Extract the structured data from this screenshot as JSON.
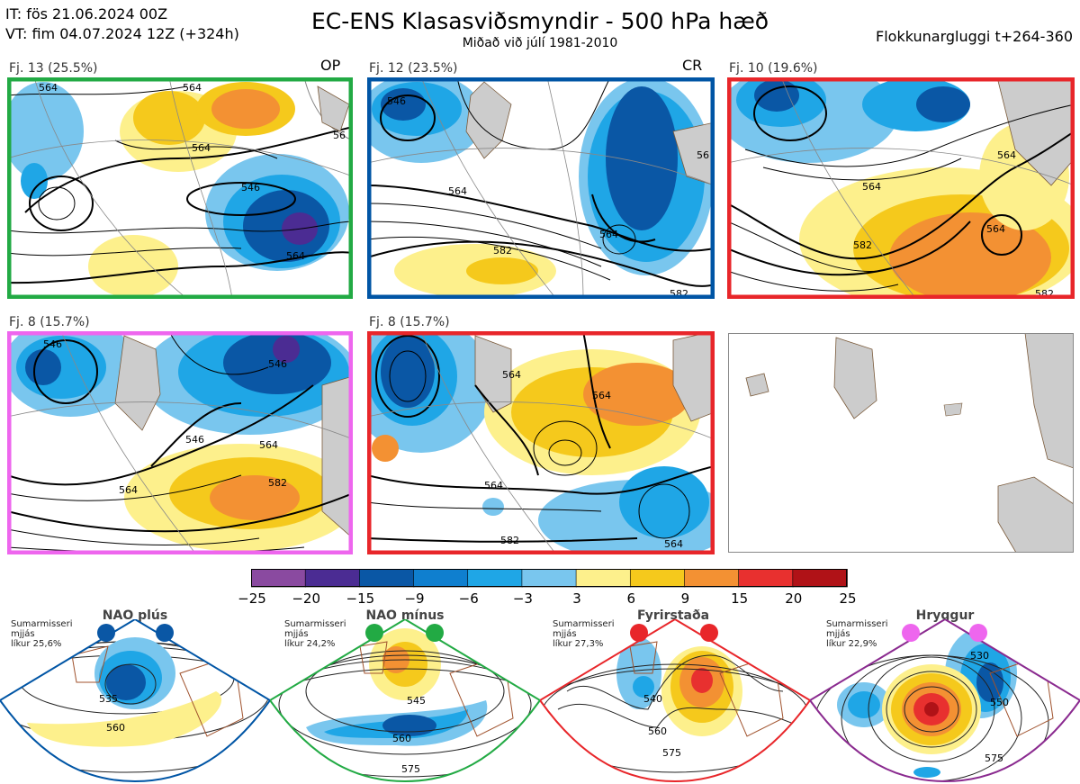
{
  "header": {
    "issue_time": "IT: fös 21.06.2024 00Z",
    "valid_time": "VT: fim 04.07.2024 12Z  (+324h)",
    "title": "EC-ENS Klasasviðsmyndir - 500 hPa hæð",
    "subtitle": "Miðað við júlí 1981-2010",
    "window": "Flokkunargluggi t+264-360"
  },
  "panels": [
    {
      "label": "Fj. 13 (25.5%)",
      "tag": "OP",
      "border_color": "#22aa44",
      "contour_labels": [
        "564",
        "564",
        "564",
        "546",
        "564",
        "56"
      ]
    },
    {
      "label": "Fj. 12 (23.5%)",
      "tag": "CR",
      "border_color": "#0055a5",
      "contour_labels": [
        "546",
        "564",
        "582",
        "564",
        "56",
        "582"
      ]
    },
    {
      "label": "Fj. 10 (19.6%)",
      "tag": "",
      "border_color": "#e8262a",
      "contour_labels": [
        "564",
        "564",
        "582",
        "564",
        "582"
      ]
    },
    {
      "label": "Fj. 8 (15.7%)",
      "tag": "",
      "border_color": "#ee66ee",
      "contour_labels": [
        "546",
        "546",
        "564",
        "582",
        "564",
        "546"
      ]
    },
    {
      "label": "Fj. 8 (15.7%)",
      "tag": "",
      "border_color": "#e8262a",
      "contour_labels": [
        "564",
        "564",
        "564",
        "582",
        "564"
      ]
    },
    {
      "label": "",
      "tag": "",
      "border_color": "#888888",
      "contour_labels": []
    }
  ],
  "colorbar": {
    "ticks": [
      "−25",
      "−20",
      "−15",
      "−9",
      "−6",
      "−3",
      "3",
      "6",
      "9",
      "15",
      "20",
      "25"
    ],
    "colors": [
      "#8a4aa0",
      "#4b2c93",
      "#0a57a5",
      "#0f7fcf",
      "#1fa6e6",
      "#79c6ee",
      "#ffffff",
      "#fdf08c",
      "#f5c91c",
      "#f39133",
      "#e8302f",
      "#b01217"
    ]
  },
  "regimes": [
    {
      "name": "NAO plús",
      "note_line1": "Sumarmisseri",
      "note_line2": "mjjás",
      "note_line3": "líkur 25,6%",
      "border_color": "#0055a5",
      "dot_color": "#0a57a5",
      "contour_labels": [
        "535",
        "560"
      ]
    },
    {
      "name": "NAO mínus",
      "note_line1": "Sumarmisseri",
      "note_line2": "mjjás",
      "note_line3": "líkur 24,2%",
      "border_color": "#22aa44",
      "dot_color": "#22aa44",
      "contour_labels": [
        "545",
        "560",
        "575"
      ]
    },
    {
      "name": "Fyrirstaða",
      "note_line1": "Sumarmisseri",
      "note_line2": "mjjás",
      "note_line3": "líkur 27,3%",
      "border_color": "#e8262a",
      "dot_color": "#e8262a",
      "contour_labels": [
        "540",
        "560",
        "575"
      ]
    },
    {
      "name": "Hryggur",
      "note_line1": "Sumarmisseri",
      "note_line2": "mjjás",
      "note_line3": "líkur 22,9%",
      "border_color": "#8a2a8f",
      "dot_color": "#ee66ee",
      "contour_labels": [
        "530",
        "550",
        "575"
      ]
    }
  ]
}
